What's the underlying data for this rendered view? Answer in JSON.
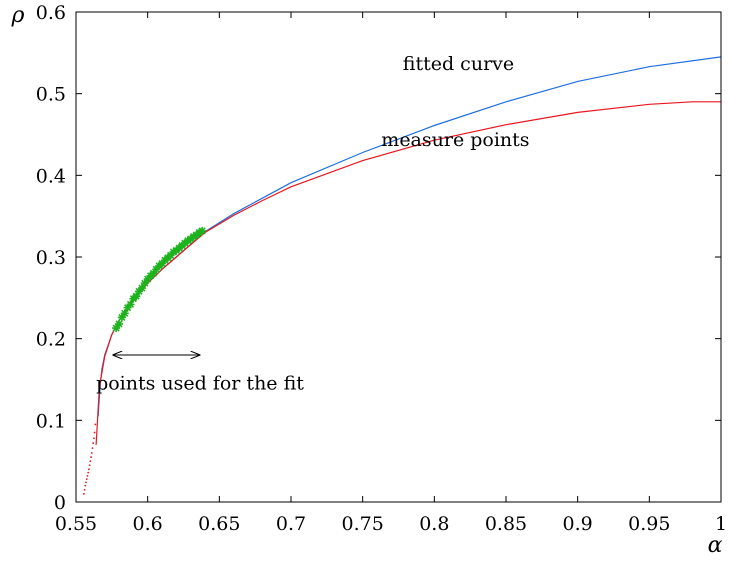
{
  "chart_data": {
    "type": "line",
    "title": "",
    "xlabel": "α",
    "ylabel": "ρ",
    "xlim": [
      0.55,
      1.0
    ],
    "ylim": [
      0.0,
      0.6
    ],
    "grid": false,
    "xticks": [
      0.55,
      0.6,
      0.65,
      0.7,
      0.75,
      0.8,
      0.85,
      0.9,
      0.95,
      1.0
    ],
    "xtick_labels": [
      "0.55",
      "0.6",
      "0.65",
      "0.7",
      "0.75",
      "0.8",
      "0.85",
      "0.9",
      "0.95",
      "1"
    ],
    "yticks": [
      0,
      0.1,
      0.2,
      0.3,
      0.4,
      0.5,
      0.6
    ],
    "ytick_labels": [
      "0",
      "0.1",
      "0.2",
      "0.3",
      "0.4",
      "0.5",
      "0.6"
    ],
    "series": [
      {
        "name": "fitted curve",
        "color": "#1f6fe0",
        "style": "line",
        "x": [
          0.5655,
          0.566,
          0.567,
          0.568,
          0.57,
          0.575,
          0.58,
          0.59,
          0.6,
          0.61,
          0.62,
          0.64,
          0.66,
          0.68,
          0.7,
          0.75,
          0.8,
          0.85,
          0.9,
          0.95,
          1.0
        ],
        "y": [
          0.105,
          0.12,
          0.145,
          0.162,
          0.18,
          0.205,
          0.222,
          0.248,
          0.268,
          0.285,
          0.3,
          0.331,
          0.353,
          0.372,
          0.391,
          0.428,
          0.461,
          0.49,
          0.515,
          0.533,
          0.545
        ]
      },
      {
        "name": "measure points",
        "color": "#e8171e",
        "style": "line",
        "x": [
          0.564,
          0.5645,
          0.565,
          0.5655,
          0.566,
          0.567,
          0.57,
          0.575,
          0.58,
          0.59,
          0.6,
          0.61,
          0.62,
          0.64,
          0.66,
          0.68,
          0.7,
          0.75,
          0.8,
          0.85,
          0.9,
          0.95,
          0.98,
          1.0
        ],
        "y": [
          0.07,
          0.085,
          0.1,
          0.115,
          0.13,
          0.148,
          0.178,
          0.205,
          0.222,
          0.248,
          0.268,
          0.285,
          0.3,
          0.33,
          0.351,
          0.369,
          0.386,
          0.418,
          0.443,
          0.462,
          0.477,
          0.487,
          0.49,
          0.49
        ]
      },
      {
        "name": "",
        "color": "#e8171e",
        "style": "dots",
        "x": [
          0.5555,
          0.556,
          0.5565,
          0.557,
          0.5575,
          0.558,
          0.5585,
          0.559,
          0.5595,
          0.56,
          0.5605,
          0.561,
          0.5615,
          0.562,
          0.5625,
          0.563,
          0.5635
        ],
        "y": [
          0.01,
          0.015,
          0.02,
          0.024,
          0.028,
          0.032,
          0.036,
          0.04,
          0.045,
          0.05,
          0.055,
          0.06,
          0.066,
          0.072,
          0.078,
          0.085,
          0.095
        ]
      },
      {
        "name": "",
        "color": "#1db31d",
        "style": "markers",
        "marker": "*",
        "x": [
          0.578,
          0.58,
          0.582,
          0.584,
          0.586,
          0.588,
          0.59,
          0.592,
          0.594,
          0.596,
          0.598,
          0.6,
          0.602,
          0.604,
          0.606,
          0.608,
          0.61,
          0.612,
          0.614,
          0.616,
          0.618,
          0.62,
          0.622,
          0.624,
          0.626,
          0.628,
          0.63,
          0.632,
          0.634,
          0.636,
          0.638
        ],
        "y": [
          0.213,
          0.218,
          0.226,
          0.231,
          0.238,
          0.242,
          0.249,
          0.252,
          0.258,
          0.262,
          0.268,
          0.273,
          0.277,
          0.28,
          0.285,
          0.289,
          0.292,
          0.296,
          0.299,
          0.302,
          0.306,
          0.308,
          0.311,
          0.314,
          0.317,
          0.32,
          0.322,
          0.325,
          0.327,
          0.33,
          0.332
        ]
      }
    ],
    "annotations": [
      {
        "text": "fitted curve",
        "x": 0.778,
        "y": 0.529
      },
      {
        "text": "measure points",
        "x": 0.763,
        "y": 0.436
      },
      {
        "text": "points used for the fit",
        "x": 0.564,
        "y": 0.138
      }
    ],
    "arrow": {
      "x_from": 0.576,
      "x_to": 0.636,
      "y": 0.18
    }
  }
}
